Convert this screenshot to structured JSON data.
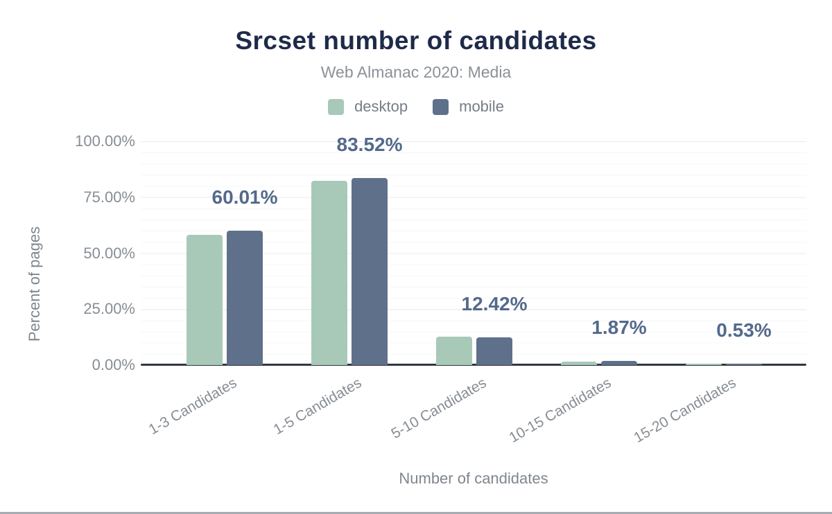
{
  "chart_data": {
    "type": "bar",
    "title": "Srcset number of candidates",
    "subtitle": "Web Almanac 2020: Media",
    "categories": [
      "1-3 Candidates",
      "1-5 Candidates",
      "5-10 Candidates",
      "10-15 Candidates",
      "15-20 Candidates"
    ],
    "series": [
      {
        "name": "desktop",
        "color": "#a8c9b8",
        "values": [
          58.3,
          82.3,
          12.7,
          1.66,
          0.49
        ]
      },
      {
        "name": "mobile",
        "color": "#5f708b",
        "values": [
          60.01,
          83.52,
          12.42,
          1.87,
          0.53
        ]
      }
    ],
    "data_labels": [
      "60.01%",
      "83.52%",
      "12.42%",
      "1.87%",
      "0.53%"
    ],
    "data_labels_series": "mobile",
    "xlabel": "Number of candidates",
    "ylabel": "Percent of pages",
    "yticks": [
      "0.00%",
      "25.00%",
      "50.00%",
      "75.00%",
      "100.00%"
    ],
    "ylim": [
      0,
      100
    ],
    "grid": "horizontal, minor every 5%, major every 25%",
    "legend_position": "top"
  },
  "colors": {
    "title": "#1e2a49",
    "subtitle_text": "#8b9198",
    "data_label": "#54698c",
    "axis_text": "#878d94",
    "desktop_bar": "#a8c9b8",
    "mobile_bar": "#5f708b",
    "axis_line": "#31373d",
    "footer_bar": "#a6acb2"
  }
}
